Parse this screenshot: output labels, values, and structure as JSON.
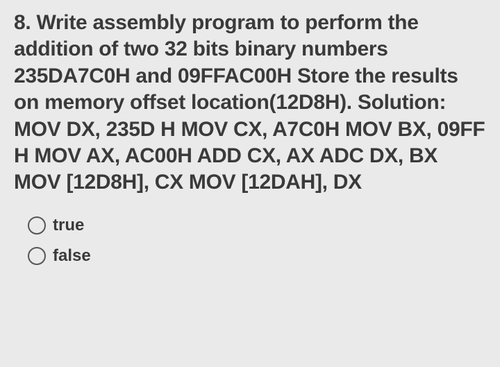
{
  "question": {
    "number": "8.",
    "text": "8. Write assembly program to perform the addition of two 32 bits binary numbers 235DA7C0H and 09FFAC00H Store the results on memory offset location(12D8H). Solution: MOV DX, 235D H MOV CX, A7C0H MOV BX, 09FF H MOV AX, AC00H ADD CX, AX ADC DX, BX MOV [12D8H], CX MOV [12DAH], DX"
  },
  "options": [
    {
      "label": "true",
      "selected": false
    },
    {
      "label": "false",
      "selected": false
    }
  ],
  "colors": {
    "background": "#eaeaea",
    "text": "#3a3a3a",
    "radio_border": "#555555"
  },
  "typography": {
    "question_fontsize": 30,
    "question_weight": "bold",
    "option_fontsize": 24,
    "option_weight": "bold",
    "line_height": 1.28
  }
}
